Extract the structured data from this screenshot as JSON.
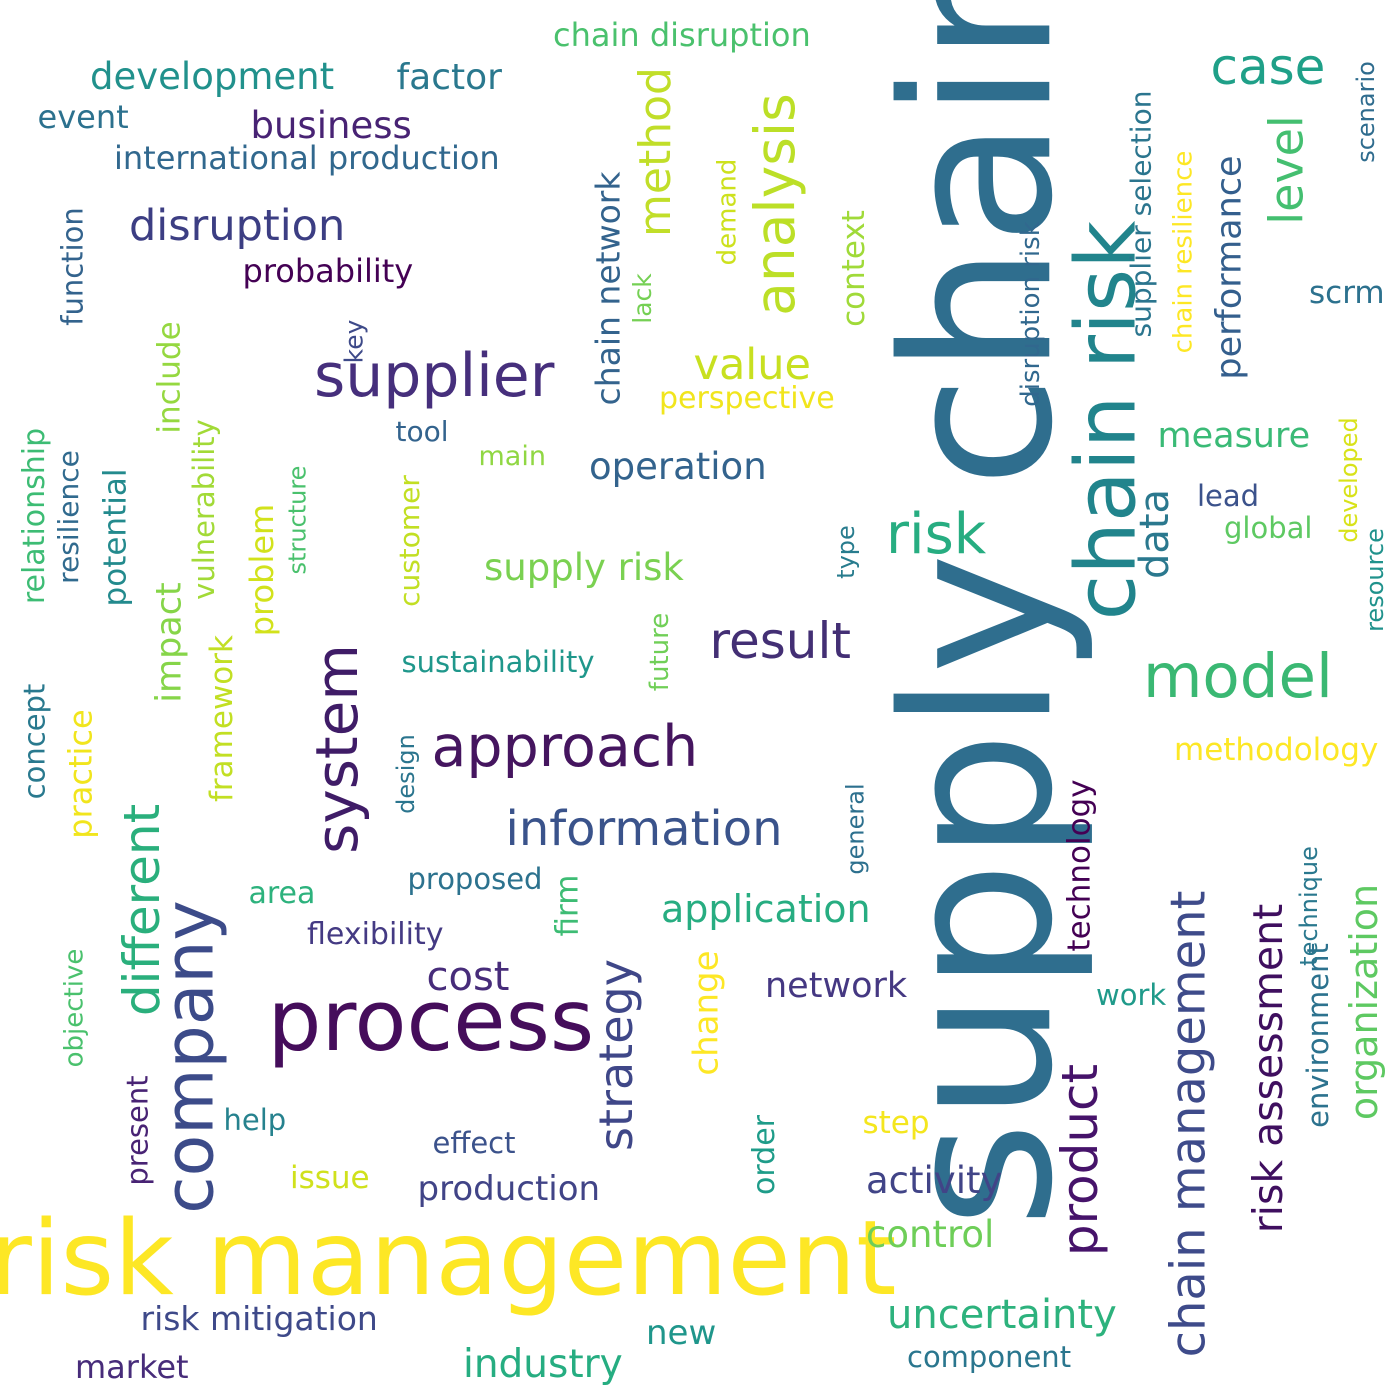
{
  "words": [
    {
      "text": "supply chain",
      "color": "#2f6e8e",
      "vertical": true
    },
    {
      "text": "risk management",
      "color": "#fde725",
      "vertical": false
    },
    {
      "text": "chain risk",
      "color": "#21848c",
      "vertical": true
    },
    {
      "text": "process",
      "color": "#450d5b",
      "vertical": false
    },
    {
      "text": "company",
      "color": "#3c4b89",
      "vertical": true
    },
    {
      "text": "supplier",
      "color": "#462f7c",
      "vertical": false
    },
    {
      "text": "system",
      "color": "#3f1c67",
      "vertical": true
    },
    {
      "text": "approach",
      "color": "#45155f",
      "vertical": false
    },
    {
      "text": "analysis",
      "color": "#bcdf27",
      "vertical": true
    },
    {
      "text": "chain management",
      "color": "#3e4b8a",
      "vertical": true
    },
    {
      "text": "model",
      "color": "#3ab873",
      "vertical": false
    },
    {
      "text": "result",
      "color": "#432f74",
      "vertical": false
    },
    {
      "text": "information",
      "color": "#3a538b",
      "vertical": false
    },
    {
      "text": "different",
      "color": "#2aaf7c",
      "vertical": true
    },
    {
      "text": "strategy",
      "color": "#3f4788",
      "vertical": true
    },
    {
      "text": "product",
      "color": "#46136a",
      "vertical": true
    },
    {
      "text": "risk assessment",
      "color": "#3f0f5f",
      "vertical": true
    },
    {
      "text": "risk",
      "color": "#27ad81",
      "vertical": false
    },
    {
      "text": "case",
      "color": "#1fa088",
      "vertical": false
    },
    {
      "text": "method",
      "color": "#c1de29",
      "vertical": true
    },
    {
      "text": "level",
      "color": "#44bf70",
      "vertical": true
    },
    {
      "text": "disruption",
      "color": "#3c3e83",
      "vertical": false
    },
    {
      "text": "value",
      "color": "#c8e020",
      "vertical": false
    },
    {
      "text": "organization",
      "color": "#5ec962",
      "vertical": true
    },
    {
      "text": "uncertainty",
      "color": "#2db27d",
      "vertical": false
    },
    {
      "text": "industry",
      "color": "#26ad81",
      "vertical": false
    },
    {
      "text": "cost",
      "color": "#472c7a",
      "vertical": false
    },
    {
      "text": "data",
      "color": "#2a788e",
      "vertical": true
    },
    {
      "text": "performance",
      "color": "#345f8d",
      "vertical": true
    },
    {
      "text": "application",
      "color": "#27ad81",
      "vertical": false
    },
    {
      "text": "development",
      "color": "#21918c",
      "vertical": false
    },
    {
      "text": "business",
      "color": "#482374",
      "vertical": false
    },
    {
      "text": "factor",
      "color": "#2a788e",
      "vertical": false
    },
    {
      "text": "activity",
      "color": "#414487",
      "vertical": false
    },
    {
      "text": "control",
      "color": "#6ece58",
      "vertical": false
    },
    {
      "text": "supply risk",
      "color": "#7ad151",
      "vertical": false
    },
    {
      "text": "operation",
      "color": "#33638d",
      "vertical": false
    },
    {
      "text": "chain network",
      "color": "#33638d",
      "vertical": true
    },
    {
      "text": "impact",
      "color": "#86d549",
      "vertical": true
    },
    {
      "text": "measure",
      "color": "#3aba76",
      "vertical": false
    },
    {
      "text": "network",
      "color": "#453882",
      "vertical": false
    },
    {
      "text": "technology",
      "color": "#440154",
      "vertical": true
    },
    {
      "text": "change",
      "color": "#fde725",
      "vertical": true
    },
    {
      "text": "problem",
      "color": "#d2e21b",
      "vertical": true
    },
    {
      "text": "production",
      "color": "#414487",
      "vertical": false
    },
    {
      "text": "risk mitigation",
      "color": "#3e4989",
      "vertical": false
    },
    {
      "text": "new",
      "color": "#1f968b",
      "vertical": false
    },
    {
      "text": "market",
      "color": "#472c7a",
      "vertical": false
    },
    {
      "text": "chain disruption",
      "color": "#4ac16d",
      "vertical": false
    },
    {
      "text": "international production",
      "color": "#31688e",
      "vertical": false
    },
    {
      "text": "event",
      "color": "#2c718e",
      "vertical": false
    },
    {
      "text": "probability",
      "color": "#440154",
      "vertical": false
    },
    {
      "text": "perspective",
      "color": "#f1e51d",
      "vertical": false
    },
    {
      "text": "framework",
      "color": "#c2df23",
      "vertical": true
    },
    {
      "text": "vulnerability",
      "color": "#a2da37",
      "vertical": true
    },
    {
      "text": "potential",
      "color": "#238a8d",
      "vertical": true
    },
    {
      "text": "include",
      "color": "#95d840",
      "vertical": true
    },
    {
      "text": "context",
      "color": "#a0da39",
      "vertical": true
    },
    {
      "text": "methodology",
      "color": "#fde725",
      "vertical": false
    },
    {
      "text": "firm",
      "color": "#3dbc74",
      "vertical": true
    },
    {
      "text": "practice",
      "color": "#f1e51d",
      "vertical": true
    },
    {
      "text": "customer",
      "color": "#c2df23",
      "vertical": true
    },
    {
      "text": "environment",
      "color": "#2c728e",
      "vertical": true
    },
    {
      "text": "supplier selection",
      "color": "#2b758e",
      "vertical": true
    },
    {
      "text": "chain resilience",
      "color": "#fde725",
      "vertical": true
    },
    {
      "text": "disruption risk",
      "color": "#31688e",
      "vertical": true
    },
    {
      "text": "relationship",
      "color": "#3dbc74",
      "vertical": true
    },
    {
      "text": "resilience",
      "color": "#306a8e",
      "vertical": true
    },
    {
      "text": "concept",
      "color": "#29798e",
      "vertical": true
    },
    {
      "text": "function",
      "color": "#33638d",
      "vertical": true
    },
    {
      "text": "present",
      "color": "#482374",
      "vertical": true
    },
    {
      "text": "objective",
      "color": "#4ac16d",
      "vertical": true
    },
    {
      "text": "structure",
      "color": "#4ac16d",
      "vertical": true
    },
    {
      "text": "design",
      "color": "#2b758e",
      "vertical": true
    },
    {
      "text": "order",
      "color": "#1e9c89",
      "vertical": true
    },
    {
      "text": "technique",
      "color": "#2a788e",
      "vertical": true
    },
    {
      "text": "future",
      "color": "#70cf57",
      "vertical": true
    },
    {
      "text": "type",
      "color": "#287c8e",
      "vertical": true
    },
    {
      "text": "general",
      "color": "#2d708e",
      "vertical": true
    },
    {
      "text": "developed",
      "color": "#d8e219",
      "vertical": true
    },
    {
      "text": "resource",
      "color": "#20928c",
      "vertical": true
    },
    {
      "text": "scenario",
      "color": "#2f6c8e",
      "vertical": true
    },
    {
      "text": "demand",
      "color": "#cde11d",
      "vertical": true
    },
    {
      "text": "lack",
      "color": "#75d054",
      "vertical": true
    },
    {
      "text": "key",
      "color": "#3e4a89",
      "vertical": true
    },
    {
      "text": "sustainability",
      "color": "#1f978b",
      "vertical": false
    },
    {
      "text": "flexibility",
      "color": "#443a83",
      "vertical": false
    },
    {
      "text": "proposed",
      "color": "#2c728e",
      "vertical": false
    },
    {
      "text": "area",
      "color": "#2db27d",
      "vertical": false
    },
    {
      "text": "tool",
      "color": "#33638d",
      "vertical": false
    },
    {
      "text": "main",
      "color": "#90d743",
      "vertical": false
    },
    {
      "text": "help",
      "color": "#26828e",
      "vertical": false
    },
    {
      "text": "issue",
      "color": "#d0e11c",
      "vertical": false
    },
    {
      "text": "effect",
      "color": "#3b528b",
      "vertical": false
    },
    {
      "text": "step",
      "color": "#f4e61e",
      "vertical": false
    },
    {
      "text": "work",
      "color": "#1f9a8a",
      "vertical": false
    },
    {
      "text": "component",
      "color": "#2a768e",
      "vertical": false
    },
    {
      "text": "lead",
      "color": "#3b528b",
      "vertical": false
    },
    {
      "text": "global",
      "color": "#5ec962",
      "vertical": false
    },
    {
      "text": "scrm",
      "color": "#2c718e",
      "vertical": false
    }
  ]
}
